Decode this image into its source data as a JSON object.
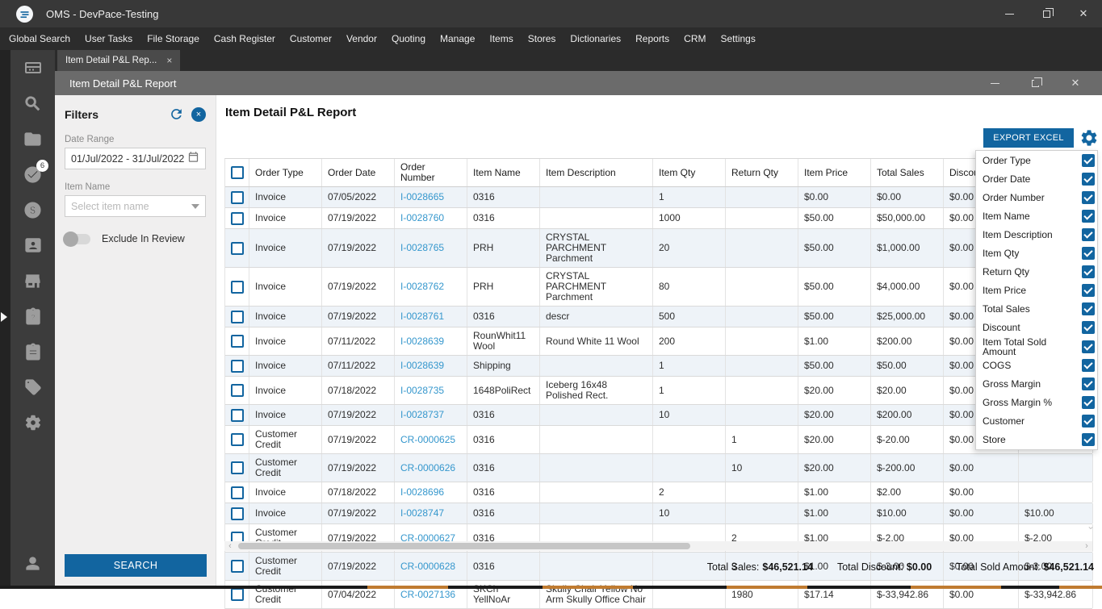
{
  "window": {
    "title": "OMS - DevPace-Testing"
  },
  "menu": {
    "items": [
      "Global Search",
      "User Tasks",
      "File Storage",
      "Cash Register",
      "Customer",
      "Vendor",
      "Quoting",
      "Manage",
      "Items",
      "Stores",
      "Dictionaries",
      "Reports",
      "CRM",
      "Settings"
    ]
  },
  "tab": {
    "label": "Item Detail P&L Rep...",
    "close": "×"
  },
  "inner_window": {
    "title": "Item Detail P&L Report"
  },
  "sidebar": {
    "task_badge": "6"
  },
  "filters": {
    "title": "Filters",
    "date_range_label": "Date Range",
    "date_range_value": "01/Jul/2022 - 31/Jul/2022",
    "item_name_label": "Item Name",
    "item_name_placeholder": "Select item name",
    "exclude_toggle_label": "Exclude In Review",
    "search_button": "SEARCH"
  },
  "report": {
    "title": "Item Detail P&L Report",
    "export_button": "EXPORT EXCEL"
  },
  "table": {
    "headers": [
      "",
      "Order Type",
      "Order Date",
      "Order Number",
      "Item Name",
      "Item Description",
      "Item Qty",
      "Return Qty",
      "Item Price",
      "Total Sales",
      "Discount",
      "Item Total Sold Amount"
    ],
    "rows": [
      [
        "Invoice",
        "07/05/2022",
        "I-0028665",
        "0316",
        "",
        "1",
        "",
        "$0.00",
        "$0.00",
        "$0.00",
        ""
      ],
      [
        "Invoice",
        "07/19/2022",
        "I-0028760",
        "0316",
        "",
        "1000",
        "",
        "$50.00",
        "$50,000.00",
        "$0.00",
        ""
      ],
      [
        "Invoice",
        "07/19/2022",
        "I-0028765",
        "PRH",
        "CRYSTAL PARCHMENT Parchment",
        "20",
        "",
        "$50.00",
        "$1,000.00",
        "$0.00",
        ""
      ],
      [
        "Invoice",
        "07/19/2022",
        "I-0028762",
        "PRH",
        "CRYSTAL PARCHMENT Parchment",
        "80",
        "",
        "$50.00",
        "$4,000.00",
        "$0.00",
        ""
      ],
      [
        "Invoice",
        "07/19/2022",
        "I-0028761",
        "0316",
        "descr",
        "500",
        "",
        "$50.00",
        "$25,000.00",
        "$0.00",
        ""
      ],
      [
        "Invoice",
        "07/11/2022",
        "I-0028639",
        "RounWhit11Wool",
        "Round White 11 Wool",
        "200",
        "",
        "$1.00",
        "$200.00",
        "$0.00",
        ""
      ],
      [
        "Invoice",
        "07/11/2022",
        "I-0028639",
        "Shipping",
        "",
        "1",
        "",
        "$50.00",
        "$50.00",
        "$0.00",
        ""
      ],
      [
        "Invoice",
        "07/18/2022",
        "I-0028735",
        "1648PoliRect",
        "Iceberg 16x48 Polished Rect.",
        "1",
        "",
        "$20.00",
        "$20.00",
        "$0.00",
        ""
      ],
      [
        "Invoice",
        "07/19/2022",
        "I-0028737",
        "0316",
        "",
        "10",
        "",
        "$20.00",
        "$200.00",
        "$0.00",
        ""
      ],
      [
        "Customer Credit",
        "07/19/2022",
        "CR-0000625",
        "0316",
        "",
        "",
        "1",
        "$20.00",
        "$-20.00",
        "$0.00",
        ""
      ],
      [
        "Customer Credit",
        "07/19/2022",
        "CR-0000626",
        "0316",
        "",
        "",
        "10",
        "$20.00",
        "$-200.00",
        "$0.00",
        ""
      ],
      [
        "Invoice",
        "07/18/2022",
        "I-0028696",
        "0316",
        "",
        "2",
        "",
        "$1.00",
        "$2.00",
        "$0.00",
        ""
      ],
      [
        "Invoice",
        "07/19/2022",
        "I-0028747",
        "0316",
        "",
        "10",
        "",
        "$1.00",
        "$10.00",
        "$0.00",
        "$10.00"
      ],
      [
        "Customer Credit",
        "07/19/2022",
        "CR-0000627",
        "0316",
        "",
        "",
        "2",
        "$1.00",
        "$-2.00",
        "$0.00",
        "$-2.00"
      ],
      [
        "Customer Credit",
        "07/19/2022",
        "CR-0000628",
        "0316",
        "",
        "",
        "3",
        "$1.00",
        "$-3.00",
        "$0.00",
        "$-3.00"
      ],
      [
        "Customer Credit",
        "07/04/2022",
        "CR-0027136",
        "SKCh YellNoAr",
        "Skully Chair Yellow No Arm Skully Office Chair",
        "",
        "1980",
        "$17.14",
        "$-33,942.86",
        "$0.00",
        "$-33,942.86"
      ]
    ]
  },
  "column_chooser": {
    "items": [
      {
        "label": "Order Type",
        "checked": true
      },
      {
        "label": "Order Date",
        "checked": true
      },
      {
        "label": "Order Number",
        "checked": true
      },
      {
        "label": "Item Name",
        "checked": true
      },
      {
        "label": "Item Description",
        "checked": true
      },
      {
        "label": "Item Qty",
        "checked": true
      },
      {
        "label": "Return Qty",
        "checked": true
      },
      {
        "label": "Item Price",
        "checked": true
      },
      {
        "label": "Total Sales",
        "checked": true
      },
      {
        "label": "Discount",
        "checked": true
      },
      {
        "label": "Item Total Sold Amount",
        "checked": true
      },
      {
        "label": "COGS",
        "checked": true
      },
      {
        "label": "Gross Margin",
        "checked": true
      },
      {
        "label": "Gross Margin %",
        "checked": true
      },
      {
        "label": "Customer",
        "checked": true
      },
      {
        "label": "Store",
        "checked": true
      }
    ]
  },
  "totals": {
    "sales_label": "Total Sales:",
    "sales_value": "$46,521.14",
    "discount_label": "Total Discount:",
    "discount_value": "$0.00",
    "sold_label": "Total Sold Amount:",
    "sold_value": "$46,521.14"
  },
  "colors": {
    "accent": "#1265a0",
    "link": "#3597cd",
    "row_alt": "#eef3f8",
    "taskbar_accent": "#c07b30"
  }
}
